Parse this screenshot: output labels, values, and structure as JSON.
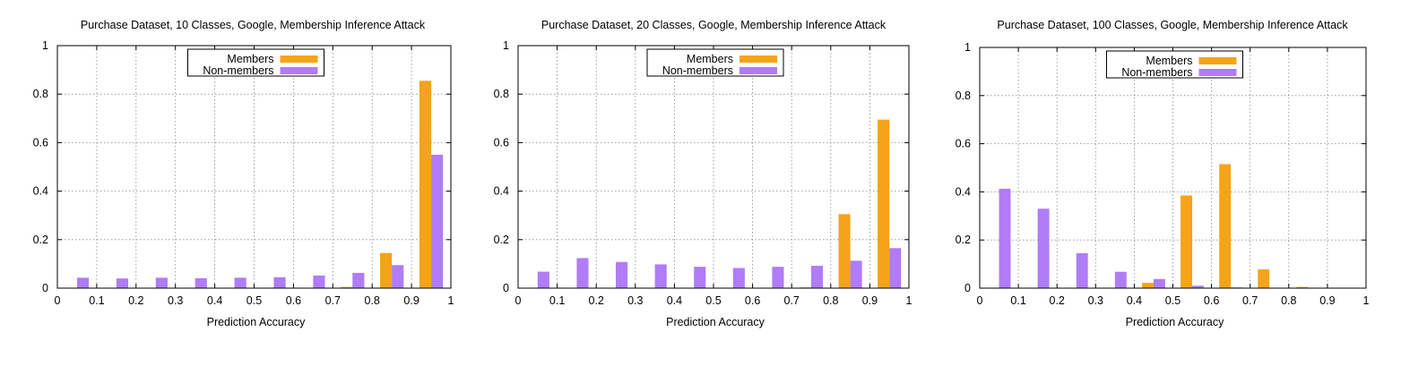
{
  "colors": {
    "members": "#f5a31a",
    "non_members": "#b07cf7",
    "grid": "#8a8a8a",
    "axis": "#000000"
  },
  "chart_data": [
    {
      "type": "bar",
      "title": "Purchase Dataset, 10 Classes, Google, Membership Inference Attack",
      "xlabel": "Prediction Accuracy",
      "ylabel": "",
      "xlim": [
        0,
        1
      ],
      "ylim": [
        0,
        1
      ],
      "x_ticks": [
        "0",
        "0.1",
        "0.2",
        "0.3",
        "0.4",
        "0.5",
        "0.6",
        "0.7",
        "0.8",
        "0.9",
        "1"
      ],
      "y_ticks": [
        "0",
        "0.2",
        "0.4",
        "0.6",
        "0.8",
        "1"
      ],
      "grid": true,
      "legend_position": "top-center",
      "bins": [
        0.05,
        0.15,
        0.25,
        0.35,
        0.45,
        0.55,
        0.65,
        0.75,
        0.85,
        0.95
      ],
      "series": [
        {
          "name": "Members",
          "color": "#f5a31a",
          "values": [
            0,
            0,
            0,
            0,
            0,
            0,
            0,
            0.005,
            0.145,
            0.855
          ]
        },
        {
          "name": "Non-members",
          "color": "#b07cf7",
          "values": [
            0.043,
            0.04,
            0.043,
            0.041,
            0.043,
            0.045,
            0.052,
            0.063,
            0.095,
            0.55
          ]
        }
      ]
    },
    {
      "type": "bar",
      "title": "Purchase Dataset, 20 Classes, Google, Membership Inference Attack",
      "xlabel": "Prediction Accuracy",
      "ylabel": "",
      "xlim": [
        0,
        1
      ],
      "ylim": [
        0,
        1
      ],
      "x_ticks": [
        "0",
        "0.1",
        "0.2",
        "0.3",
        "0.4",
        "0.5",
        "0.6",
        "0.7",
        "0.8",
        "0.9",
        "1"
      ],
      "y_ticks": [
        "0",
        "0.2",
        "0.4",
        "0.6",
        "0.8",
        "1"
      ],
      "grid": true,
      "legend_position": "top-center",
      "bins": [
        0.05,
        0.15,
        0.25,
        0.35,
        0.45,
        0.55,
        0.65,
        0.75,
        0.85,
        0.95
      ],
      "series": [
        {
          "name": "Members",
          "color": "#f5a31a",
          "values": [
            0,
            0,
            0,
            0,
            0,
            0,
            0,
            0.003,
            0.305,
            0.695
          ]
        },
        {
          "name": "Non-members",
          "color": "#b07cf7",
          "values": [
            0.068,
            0.124,
            0.108,
            0.098,
            0.088,
            0.083,
            0.088,
            0.092,
            0.113,
            0.165
          ]
        }
      ]
    },
    {
      "type": "bar",
      "title": "Purchase Dataset, 100 Classes, Google, Membership Inference Attack",
      "xlabel": "Prediction Accuracy",
      "ylabel": "",
      "xlim": [
        0,
        1
      ],
      "ylim": [
        0,
        1
      ],
      "x_ticks": [
        "0",
        "0.1",
        "0.2",
        "0.3",
        "0.4",
        "0.5",
        "0.6",
        "0.7",
        "0.8",
        "0.9",
        "1"
      ],
      "y_ticks": [
        "0",
        "0.2",
        "0.4",
        "0.6",
        "0.8",
        "1"
      ],
      "grid": true,
      "legend_position": "top-center",
      "bins": [
        0.05,
        0.15,
        0.25,
        0.35,
        0.45,
        0.55,
        0.65,
        0.75,
        0.85,
        0.95
      ],
      "series": [
        {
          "name": "Members",
          "color": "#f5a31a",
          "values": [
            0,
            0,
            0,
            0,
            0.022,
            0.385,
            0.515,
            0.078,
            0.005,
            0
          ]
        },
        {
          "name": "Non-members",
          "color": "#b07cf7",
          "values": [
            0.413,
            0.33,
            0.145,
            0.068,
            0.038,
            0.01,
            0.003,
            0,
            0,
            0
          ]
        }
      ]
    }
  ]
}
